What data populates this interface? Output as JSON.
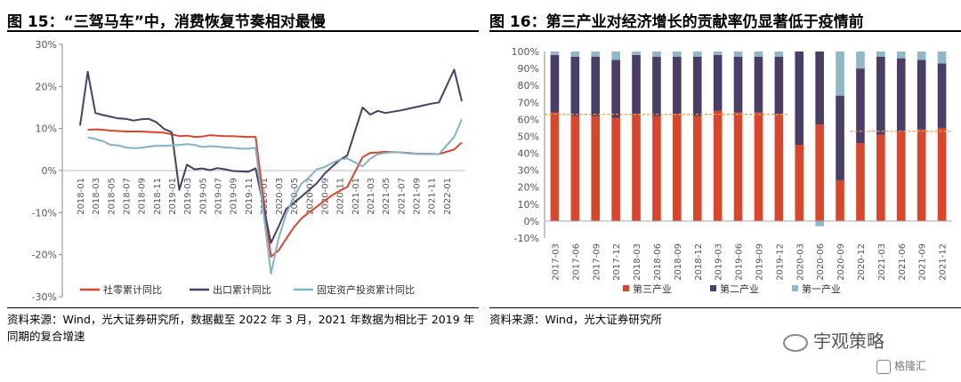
{
  "chart_data": [
    {
      "type": "line",
      "title": "图 15：“三驾马车”中，消费恢复节奏相对最慢",
      "source": "资料来源：Wind，光大证券研究所，数据截至 2022 年 3 月，2021 年数据为相比于 2019 年同期的复合增速",
      "ylim": [
        -30,
        30
      ],
      "yticks": [
        "30%",
        "20%",
        "10%",
        "0%",
        "-10%",
        "-20%",
        "-30%"
      ],
      "x": [
        "2018-01",
        "2018-02",
        "2018-03",
        "2018-04",
        "2018-05",
        "2018-06",
        "2018-07",
        "2018-08",
        "2018-09",
        "2018-10",
        "2018-11",
        "2018-12",
        "2019-01",
        "2019-02",
        "2019-03",
        "2019-04",
        "2019-05",
        "2019-06",
        "2019-07",
        "2019-08",
        "2019-09",
        "2019-10",
        "2019-11",
        "2019-12",
        "2020-01",
        "2020-02",
        "2020-03",
        "2020-04",
        "2020-05",
        "2020-06",
        "2020-07",
        "2020-08",
        "2020-09",
        "2020-10",
        "2020-11",
        "2020-12",
        "2021-01",
        "2021-02",
        "2021-03",
        "2021-04",
        "2021-05",
        "2021-06",
        "2021-07",
        "2021-08",
        "2021-09",
        "2021-10",
        "2021-11",
        "2021-12",
        "2022-01",
        "2022-02",
        "2022-03"
      ],
      "xticks": [
        "2018-01",
        "2018-03",
        "2018-05",
        "2018-07",
        "2018-09",
        "2018-11",
        "2019-01",
        "2019-03",
        "2019-05",
        "2019-07",
        "2019-09",
        "2019-11",
        "2020-01",
        "2020-03",
        "2020-05",
        "2020-07",
        "2020-09",
        "2020-11",
        "2021-01",
        "2021-03",
        "2021-05",
        "2021-07",
        "2021-09",
        "2021-11",
        "2022-01"
      ],
      "series": [
        {
          "name": "社零累计同比",
          "color": "#d9462b",
          "values": [
            null,
            9.7,
            9.8,
            9.7,
            9.5,
            9.4,
            9.3,
            9.3,
            9.3,
            9.2,
            9.1,
            9.0,
            null,
            8.2,
            8.3,
            8.0,
            8.1,
            8.4,
            8.3,
            8.2,
            8.2,
            8.1,
            8.0,
            8.0,
            null,
            -20.5,
            -19.0,
            -16.2,
            -13.5,
            -11.4,
            -9.9,
            -8.6,
            -7.2,
            -5.9,
            -4.8,
            -3.9,
            null,
            3.2,
            4.2,
            4.3,
            4.5,
            4.4,
            4.3,
            4.2,
            4.0,
            4.0,
            4.0,
            3.9,
            null,
            5.0,
            6.7
          ]
        },
        {
          "name": "出口累计同比",
          "color": "#4a3d66",
          "values": [
            10.7,
            23.5,
            13.7,
            13.2,
            12.8,
            12.4,
            12.3,
            11.9,
            12.2,
            12.3,
            11.5,
            9.9,
            9.1,
            -4.6,
            1.4,
            0.3,
            0.5,
            0.1,
            0.6,
            0.3,
            -0.1,
            -0.2,
            -0.3,
            0.5,
            null,
            -17.2,
            -13.3,
            -9.1,
            -7.7,
            -6.2,
            -4.6,
            -3.0,
            -0.8,
            0.9,
            2.5,
            3.6,
            null,
            15.0,
            13.3,
            14.2,
            13.7,
            14.0,
            14.3,
            14.7,
            15.1,
            15.5,
            15.9,
            16.2,
            null,
            24.0,
            16.5
          ]
        },
        {
          "name": "固定资产投资累计同比",
          "color": "#7fb3c7",
          "values": [
            null,
            7.9,
            7.5,
            7.0,
            6.1,
            6.0,
            5.5,
            5.3,
            5.4,
            5.7,
            5.9,
            5.9,
            null,
            6.1,
            6.3,
            6.1,
            5.6,
            5.8,
            5.7,
            5.5,
            5.4,
            5.2,
            5.2,
            5.4,
            null,
            -24.5,
            -16.1,
            -10.3,
            -6.3,
            -3.1,
            -1.6,
            0.3,
            0.8,
            1.8,
            2.6,
            2.9,
            null,
            1.0,
            2.8,
            3.9,
            4.2,
            4.4,
            4.3,
            4.1,
            4.0,
            3.9,
            3.9,
            3.9,
            null,
            8.0,
            12.2
          ]
        }
      ]
    },
    {
      "type": "bar",
      "stacked": true,
      "title": "图 16：第三产业对经济增长的贡献率仍显著低于疫情前",
      "source": "资料来源：Wind，光大证券研究所",
      "ylim": [
        -10,
        100
      ],
      "yticks": [
        "100%",
        "90%",
        "80%",
        "70%",
        "60%",
        "50%",
        "40%",
        "30%",
        "20%",
        "10%",
        "0%",
        "-10%"
      ],
      "categories": [
        "2017-03",
        "2017-06",
        "2017-09",
        "2017-12",
        "2018-03",
        "2018-06",
        "2018-09",
        "2018-12",
        "2019-03",
        "2019-06",
        "2019-09",
        "2019-12",
        "2020-03",
        "2020-06",
        "2020-09",
        "2020-12",
        "2021-03",
        "2021-06",
        "2021-09",
        "2021-12"
      ],
      "series": [
        {
          "name": "第三产业",
          "color": "#d9462b",
          "values": [
            64,
            62,
            62,
            61,
            63,
            62,
            63,
            62,
            65,
            64,
            64,
            63,
            45,
            57,
            24,
            46,
            51,
            53,
            54,
            55
          ]
        },
        {
          "name": "第二产业",
          "color": "#4a3d66",
          "values": [
            34,
            35,
            35,
            34,
            35,
            35,
            34,
            35,
            33,
            33,
            33,
            34,
            55,
            43,
            50,
            44,
            46,
            43,
            41,
            38
          ]
        },
        {
          "name": "第一产业",
          "color": "#8fb7c6",
          "values": [
            2,
            3,
            3,
            5,
            2,
            3,
            3,
            3,
            2,
            3,
            3,
            3,
            0,
            -3,
            26,
            10,
            3,
            4,
            5,
            7
          ]
        }
      ],
      "reference_lines": [
        {
          "from": "2017-03",
          "to": "2019-12",
          "value": 63,
          "color": "#e8a04a"
        },
        {
          "from": "2020-12",
          "to": "2021-12",
          "value": 53,
          "color": "#e8a04a"
        }
      ]
    }
  ],
  "watermark": {
    "text": "宇观策略",
    "sub": "格隆汇"
  }
}
